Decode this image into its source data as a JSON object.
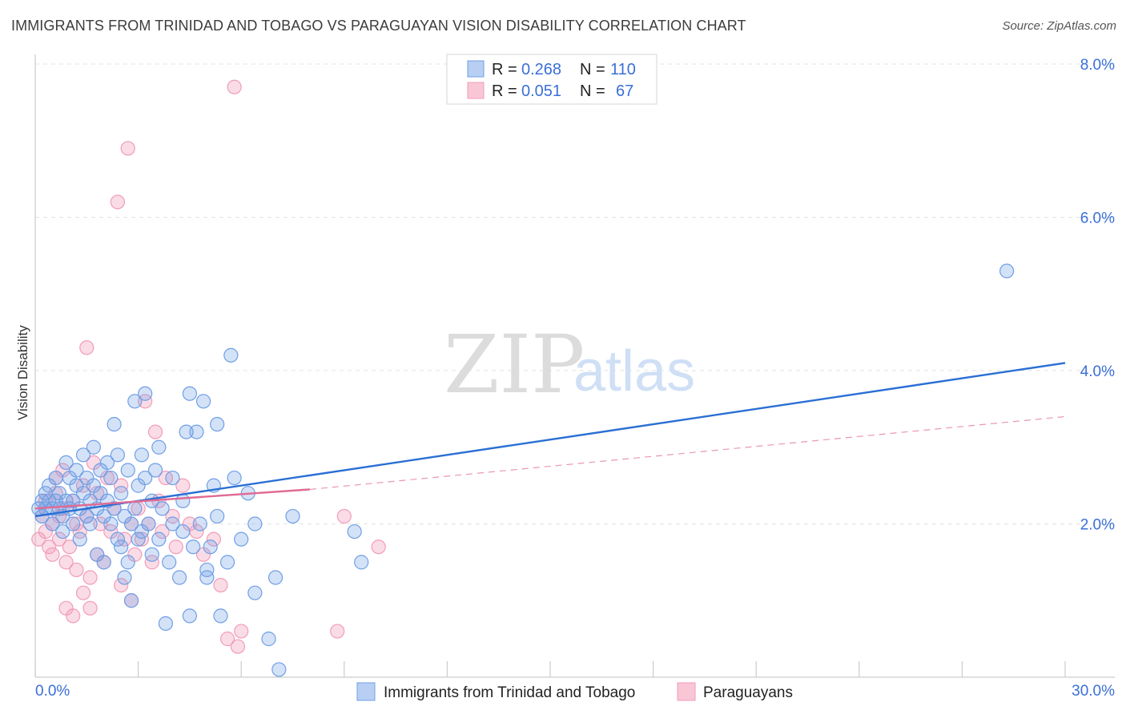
{
  "title": "IMMIGRANTS FROM TRINIDAD AND TOBAGO VS PARAGUAYAN VISION DISABILITY CORRELATION CHART",
  "source": "Source: ZipAtlas.com",
  "watermark": {
    "zip": "ZIP",
    "atlas": "atlas"
  },
  "colors": {
    "blue": "#6f9fe6",
    "blue_line": "#2a6fd4",
    "pink": "#f29cb8",
    "pink_line": "#e06a94",
    "tick_text": "#3a6fd8"
  },
  "legend": {
    "series1": {
      "r_label": "R = ",
      "r_value": "0.268",
      "n_label": "N = ",
      "n_value": "110"
    },
    "series2": {
      "r_label": "R = ",
      "r_value": "0.051",
      "n_label": "N = ",
      "n_value": "67"
    }
  },
  "chart_data": {
    "type": "scatter",
    "title": "IMMIGRANTS FROM TRINIDAD AND TOBAGO VS PARAGUAYAN VISION DISABILITY CORRELATION CHART",
    "xlabel": "",
    "ylabel": "Vision Disability",
    "xlim": [
      0,
      30
    ],
    "ylim": [
      0,
      8.0
    ],
    "x_tick_labels": [
      "0.0%",
      "30.0%"
    ],
    "y_ticks": [
      2.0,
      4.0,
      6.0,
      8.0
    ],
    "y_tick_labels": [
      "2.0%",
      "4.0%",
      "6.0%",
      "8.0%"
    ],
    "series": [
      {
        "name": "Immigrants from Trinidad and Tobago",
        "color": "#6f9fe6",
        "trend": {
          "x": [
            0,
            30
          ],
          "y": [
            2.1,
            4.1
          ]
        },
        "points": [
          [
            0.1,
            2.2
          ],
          [
            0.2,
            2.3
          ],
          [
            0.2,
            2.1
          ],
          [
            0.3,
            2.4
          ],
          [
            0.3,
            2.2
          ],
          [
            0.4,
            2.3
          ],
          [
            0.4,
            2.5
          ],
          [
            0.5,
            2.2
          ],
          [
            0.5,
            2.0
          ],
          [
            0.6,
            2.3
          ],
          [
            0.6,
            2.6
          ],
          [
            0.7,
            2.2
          ],
          [
            0.7,
            2.4
          ],
          [
            0.8,
            2.1
          ],
          [
            0.8,
            1.9
          ],
          [
            0.9,
            2.3
          ],
          [
            0.9,
            2.8
          ],
          [
            1.0,
            2.2
          ],
          [
            1.0,
            2.6
          ],
          [
            1.1,
            2.3
          ],
          [
            1.1,
            2.0
          ],
          [
            1.2,
            2.5
          ],
          [
            1.2,
            2.7
          ],
          [
            1.3,
            2.2
          ],
          [
            1.3,
            1.8
          ],
          [
            1.4,
            2.4
          ],
          [
            1.4,
            2.9
          ],
          [
            1.5,
            2.1
          ],
          [
            1.5,
            2.6
          ],
          [
            1.6,
            2.3
          ],
          [
            1.6,
            2.0
          ],
          [
            1.7,
            2.5
          ],
          [
            1.7,
            3.0
          ],
          [
            1.8,
            2.2
          ],
          [
            1.8,
            1.6
          ],
          [
            1.9,
            2.7
          ],
          [
            1.9,
            2.4
          ],
          [
            2.0,
            2.1
          ],
          [
            2.0,
            1.5
          ],
          [
            2.1,
            2.8
          ],
          [
            2.1,
            2.3
          ],
          [
            2.2,
            2.6
          ],
          [
            2.2,
            2.0
          ],
          [
            2.3,
            3.3
          ],
          [
            2.3,
            2.2
          ],
          [
            2.4,
            1.8
          ],
          [
            2.4,
            2.9
          ],
          [
            2.5,
            2.4
          ],
          [
            2.5,
            1.7
          ],
          [
            2.6,
            2.1
          ],
          [
            2.6,
            1.3
          ],
          [
            2.7,
            2.7
          ],
          [
            2.7,
            1.5
          ],
          [
            2.8,
            2.0
          ],
          [
            2.8,
            1.0
          ],
          [
            2.9,
            3.6
          ],
          [
            2.9,
            2.2
          ],
          [
            3.0,
            2.5
          ],
          [
            3.0,
            1.8
          ],
          [
            3.1,
            2.9
          ],
          [
            3.1,
            1.9
          ],
          [
            3.2,
            3.7
          ],
          [
            3.2,
            2.6
          ],
          [
            3.3,
            2.0
          ],
          [
            3.4,
            1.6
          ],
          [
            3.4,
            2.3
          ],
          [
            3.5,
            2.7
          ],
          [
            3.6,
            1.8
          ],
          [
            3.6,
            3.0
          ],
          [
            3.7,
            2.2
          ],
          [
            3.8,
            0.7
          ],
          [
            3.9,
            1.5
          ],
          [
            4.0,
            2.6
          ],
          [
            4.0,
            2.0
          ],
          [
            4.2,
            1.3
          ],
          [
            4.3,
            1.9
          ],
          [
            4.3,
            2.3
          ],
          [
            4.4,
            3.2
          ],
          [
            4.5,
            0.8
          ],
          [
            4.5,
            3.7
          ],
          [
            4.6,
            1.7
          ],
          [
            4.7,
            3.2
          ],
          [
            4.8,
            2.0
          ],
          [
            4.9,
            3.6
          ],
          [
            5.0,
            1.3
          ],
          [
            5.0,
            1.4
          ],
          [
            5.1,
            1.7
          ],
          [
            5.2,
            2.5
          ],
          [
            5.3,
            2.1
          ],
          [
            5.3,
            3.3
          ],
          [
            5.4,
            0.8
          ],
          [
            5.6,
            1.5
          ],
          [
            5.7,
            4.2
          ],
          [
            5.8,
            2.6
          ],
          [
            6.0,
            1.8
          ],
          [
            6.2,
            2.4
          ],
          [
            6.4,
            1.1
          ],
          [
            6.4,
            2.0
          ],
          [
            6.8,
            0.5
          ],
          [
            7.0,
            1.3
          ],
          [
            7.1,
            0.1
          ],
          [
            7.5,
            2.1
          ],
          [
            9.3,
            1.9
          ],
          [
            9.5,
            1.5
          ],
          [
            28.3,
            5.3
          ]
        ]
      },
      {
        "name": "Paraguayans",
        "color": "#f29cb8",
        "trend": {
          "x": [
            0,
            8
          ],
          "y": [
            2.2,
            2.45
          ]
        },
        "trend_extended": {
          "x": [
            8,
            30
          ],
          "y": [
            2.45,
            3.4
          ]
        },
        "points": [
          [
            0.1,
            1.8
          ],
          [
            0.2,
            2.1
          ],
          [
            0.3,
            1.9
          ],
          [
            0.3,
            2.3
          ],
          [
            0.4,
            1.7
          ],
          [
            0.5,
            2.0
          ],
          [
            0.5,
            1.6
          ],
          [
            0.6,
            2.4
          ],
          [
            0.6,
            2.6
          ],
          [
            0.7,
            2.1
          ],
          [
            0.7,
            1.8
          ],
          [
            0.8,
            2.7
          ],
          [
            0.8,
            2.2
          ],
          [
            0.9,
            1.5
          ],
          [
            0.9,
            0.9
          ],
          [
            1.0,
            1.7
          ],
          [
            1.1,
            2.3
          ],
          [
            1.1,
            0.8
          ],
          [
            1.2,
            2.0
          ],
          [
            1.2,
            1.4
          ],
          [
            1.3,
            1.9
          ],
          [
            1.4,
            2.5
          ],
          [
            1.4,
            1.1
          ],
          [
            1.5,
            4.3
          ],
          [
            1.5,
            2.1
          ],
          [
            1.6,
            1.3
          ],
          [
            1.6,
            0.9
          ],
          [
            1.7,
            2.8
          ],
          [
            1.8,
            2.4
          ],
          [
            1.8,
            1.6
          ],
          [
            1.9,
            2.0
          ],
          [
            2.0,
            1.5
          ],
          [
            2.1,
            2.6
          ],
          [
            2.2,
            1.9
          ],
          [
            2.3,
            2.2
          ],
          [
            2.4,
            6.2
          ],
          [
            2.5,
            2.5
          ],
          [
            2.5,
            1.2
          ],
          [
            2.6,
            1.8
          ],
          [
            2.7,
            6.9
          ],
          [
            2.8,
            2.0
          ],
          [
            2.8,
            1.0
          ],
          [
            2.9,
            1.6
          ],
          [
            3.0,
            2.2
          ],
          [
            3.1,
            1.8
          ],
          [
            3.2,
            3.6
          ],
          [
            3.3,
            2.0
          ],
          [
            3.4,
            1.5
          ],
          [
            3.5,
            3.2
          ],
          [
            3.6,
            2.3
          ],
          [
            3.7,
            1.9
          ],
          [
            3.8,
            2.6
          ],
          [
            4.0,
            2.1
          ],
          [
            4.1,
            1.7
          ],
          [
            4.3,
            2.5
          ],
          [
            4.5,
            2.0
          ],
          [
            4.7,
            1.9
          ],
          [
            4.9,
            1.6
          ],
          [
            5.2,
            1.8
          ],
          [
            5.4,
            1.2
          ],
          [
            5.6,
            0.5
          ],
          [
            5.8,
            7.7
          ],
          [
            5.9,
            0.4
          ],
          [
            6.0,
            0.6
          ],
          [
            8.8,
            0.6
          ],
          [
            9.0,
            2.1
          ],
          [
            10.0,
            1.7
          ]
        ]
      }
    ]
  },
  "bottom_legend": {
    "item1": "Immigrants from Trinidad and Tobago",
    "item2": "Paraguayans"
  }
}
